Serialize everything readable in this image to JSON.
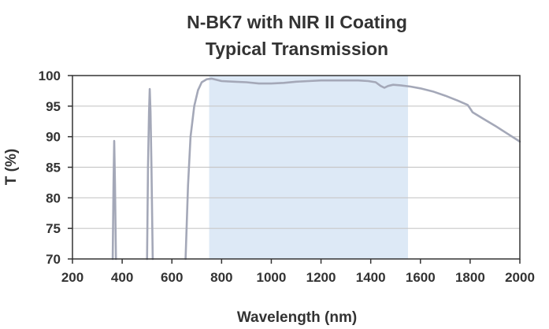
{
  "chart_data": {
    "type": "line",
    "title": "N-BK7 with NIR II Coating",
    "subtitle": "Typical Transmission",
    "xlabel": "Wavelength (nm)",
    "ylabel": "T (%)",
    "xlim": [
      200,
      2000
    ],
    "ylim": [
      70,
      100
    ],
    "xticks": [
      200,
      400,
      600,
      800,
      1000,
      1200,
      1400,
      1600,
      1800,
      2000
    ],
    "yticks": [
      70,
      75,
      80,
      85,
      90,
      95,
      100
    ],
    "grid": true,
    "design_band": [
      750,
      1550
    ],
    "colors": {
      "line": "#a4a8b8",
      "band": "#dde9f6",
      "grid": "#c8c8c8",
      "frame": "#333333"
    },
    "series": [
      {
        "segments": [
          [
            [
              362,
              70
            ],
            [
              365,
              82
            ],
            [
              368,
              89.3
            ],
            [
              371,
              82
            ],
            [
              375,
              70
            ]
          ],
          [
            [
              500,
              70
            ],
            [
              504,
              85
            ],
            [
              508,
              94
            ],
            [
              511,
              97.8
            ],
            [
              514,
              94
            ],
            [
              518,
              85
            ],
            [
              523,
              70
            ]
          ],
          [
            [
              655,
              70
            ],
            [
              665,
              82
            ],
            [
              675,
              90
            ],
            [
              690,
              95
            ],
            [
              705,
              97.6
            ],
            [
              720,
              98.9
            ],
            [
              740,
              99.4
            ],
            [
              760,
              99.5
            ],
            [
              800,
              99.1
            ],
            [
              850,
              99.0
            ],
            [
              900,
              98.9
            ],
            [
              950,
              98.7
            ],
            [
              1000,
              98.7
            ],
            [
              1050,
              98.8
            ],
            [
              1100,
              99.0
            ],
            [
              1150,
              99.1
            ],
            [
              1200,
              99.2
            ],
            [
              1250,
              99.2
            ],
            [
              1300,
              99.2
            ],
            [
              1350,
              99.2
            ],
            [
              1390,
              99.1
            ],
            [
              1420,
              98.9
            ],
            [
              1440,
              98.3
            ],
            [
              1455,
              98.0
            ],
            [
              1470,
              98.3
            ],
            [
              1490,
              98.5
            ],
            [
              1520,
              98.4
            ],
            [
              1560,
              98.2
            ],
            [
              1600,
              97.9
            ],
            [
              1650,
              97.4
            ],
            [
              1700,
              96.7
            ],
            [
              1750,
              95.9
            ],
            [
              1790,
              95.2
            ],
            [
              1800,
              94.6
            ],
            [
              1810,
              94.0
            ],
            [
              1850,
              93.0
            ],
            [
              1900,
              91.8
            ],
            [
              1950,
              90.5
            ],
            [
              2000,
              89.2
            ]
          ]
        ]
      }
    ]
  }
}
